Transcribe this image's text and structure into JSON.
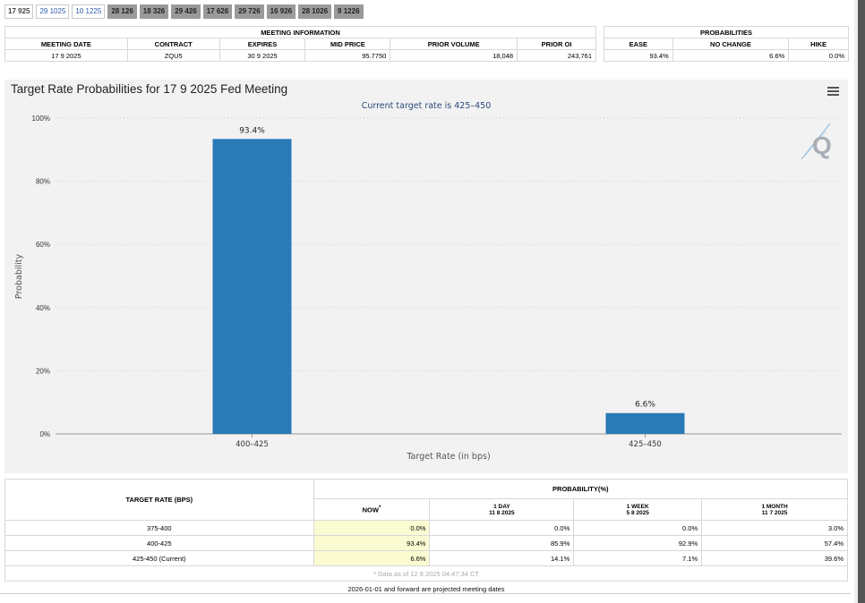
{
  "tabs": [
    {
      "label": "17 925",
      "state": "active"
    },
    {
      "label": "29 1025",
      "state": "light"
    },
    {
      "label": "10 1225",
      "state": "light"
    },
    {
      "label": "28 126",
      "state": "dark"
    },
    {
      "label": "18 326",
      "state": "dark"
    },
    {
      "label": "29 426",
      "state": "dark"
    },
    {
      "label": "17 626",
      "state": "dark"
    },
    {
      "label": "29 726",
      "state": "dark"
    },
    {
      "label": "16 926",
      "state": "dark"
    },
    {
      "label": "28 1026",
      "state": "dark"
    },
    {
      "label": "9 1226",
      "state": "dark"
    }
  ],
  "meeting_info": {
    "section_title": "MEETING INFORMATION",
    "headers": [
      "MEETING DATE",
      "CONTRACT",
      "EXPIRES",
      "MID PRICE",
      "PRIOR VOLUME",
      "PRIOR OI"
    ],
    "values": [
      "17 9 2025",
      "ZQU5",
      "30 9 2025",
      "95.7750",
      "18,048",
      "243,761"
    ]
  },
  "probabilities": {
    "section_title": "PROBABILITIES",
    "headers": [
      "EASE",
      "NO CHANGE",
      "HIKE"
    ],
    "values": [
      "93.4%",
      "6.6%",
      "0.0%"
    ]
  },
  "chart_title": "Target Rate Probabilities for 17 9 2025 Fed Meeting",
  "chart_data": {
    "type": "bar",
    "subtitle": "Current target rate is 425–450",
    "categories": [
      "400–425",
      "425–450"
    ],
    "values": [
      93.4,
      6.6
    ],
    "data_labels": [
      "93.4%",
      "6.6%"
    ],
    "xlabel": "Target Rate (in bps)",
    "ylabel": "Probability",
    "ylim": [
      0,
      100
    ],
    "yticks": [
      0,
      20,
      40,
      60,
      80,
      100
    ],
    "ytick_labels": [
      "0%",
      "20%",
      "40%",
      "60%",
      "80%",
      "100%"
    ],
    "bar_color": "#2a7ab8",
    "grid": true
  },
  "bottom_table": {
    "header_target": "TARGET RATE (BPS)",
    "header_prob": "PROBABILITY(%)",
    "columns": [
      {
        "label": "NOW",
        "mark": "*",
        "sub": ""
      },
      {
        "label": "1 DAY",
        "sub": "11 8 2025"
      },
      {
        "label": "1 WEEK",
        "sub": "5 8 2025"
      },
      {
        "label": "1 MONTH",
        "sub": "11 7 2025"
      }
    ],
    "rows": [
      {
        "rate": "375-400",
        "vals": [
          "0.0%",
          "0.0%",
          "0.0%",
          "3.0%"
        ]
      },
      {
        "rate": "400-425",
        "vals": [
          "93.4%",
          "85.9%",
          "92.9%",
          "57.4%"
        ]
      },
      {
        "rate": "425-450 (Current)",
        "vals": [
          "6.6%",
          "14.1%",
          "7.1%",
          "39.6%"
        ]
      }
    ],
    "data_note": "* Data as of 12 8 2025 04:47:34 CT"
  },
  "footer_note": "2026-01-01 and forward are projected meeting dates",
  "icons": {
    "menu": "hamburger-menu-icon",
    "logo": "quikstrike-q-logo"
  }
}
